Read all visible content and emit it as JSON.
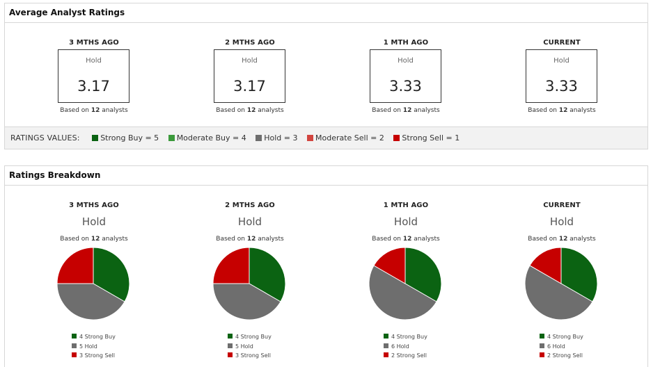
{
  "colors": {
    "strong_buy": "#0b6312",
    "moderate_buy": "#3b9a3b",
    "hold": "#6e6e6e",
    "moderate_sell": "#d2453f",
    "strong_sell": "#c60000",
    "border": "#d7d7d7"
  },
  "avg_panel": {
    "title": "Average Analyst Ratings",
    "columns": [
      {
        "label": "3 MTHS AGO",
        "rating": "Hold",
        "value": "3.17",
        "based_prefix": "Based on ",
        "count": "12",
        "based_suffix": " analysts"
      },
      {
        "label": "2 MTHS AGO",
        "rating": "Hold",
        "value": "3.17",
        "based_prefix": "Based on ",
        "count": "12",
        "based_suffix": " analysts"
      },
      {
        "label": "1 MTH AGO",
        "rating": "Hold",
        "value": "3.33",
        "based_prefix": "Based on ",
        "count": "12",
        "based_suffix": " analysts"
      },
      {
        "label": "CURRENT",
        "rating": "Hold",
        "value": "3.33",
        "based_prefix": "Based on ",
        "count": "12",
        "based_suffix": " analysts"
      }
    ],
    "values_bar": {
      "heading": "RATINGS VALUES:",
      "items": [
        {
          "label": "Strong Buy = 5",
          "color_key": "strong_buy"
        },
        {
          "label": "Moderate Buy = 4",
          "color_key": "moderate_buy"
        },
        {
          "label": "Hold = 3",
          "color_key": "hold"
        },
        {
          "label": "Moderate Sell = 2",
          "color_key": "moderate_sell"
        },
        {
          "label": "Strong Sell = 1",
          "color_key": "strong_sell"
        }
      ]
    }
  },
  "breakdown_panel": {
    "title": "Ratings Breakdown",
    "columns": [
      {
        "label": "3 MTHS AGO",
        "rating": "Hold",
        "based_prefix": "Based on ",
        "count": "12",
        "based_suffix": " analysts",
        "slices": [
          {
            "value": 4,
            "color_key": "strong_buy",
            "legend": "4 Strong Buy"
          },
          {
            "value": 5,
            "color_key": "hold",
            "legend": "5 Hold"
          },
          {
            "value": 3,
            "color_key": "strong_sell",
            "legend": "3 Strong Sell"
          }
        ]
      },
      {
        "label": "2 MTHS AGO",
        "rating": "Hold",
        "based_prefix": "Based on ",
        "count": "12",
        "based_suffix": " analysts",
        "slices": [
          {
            "value": 4,
            "color_key": "strong_buy",
            "legend": "4 Strong Buy"
          },
          {
            "value": 5,
            "color_key": "hold",
            "legend": "5 Hold"
          },
          {
            "value": 3,
            "color_key": "strong_sell",
            "legend": "3 Strong Sell"
          }
        ]
      },
      {
        "label": "1 MTH AGO",
        "rating": "Hold",
        "based_prefix": "Based on ",
        "count": "12",
        "based_suffix": " analysts",
        "slices": [
          {
            "value": 4,
            "color_key": "strong_buy",
            "legend": "4 Strong Buy"
          },
          {
            "value": 6,
            "color_key": "hold",
            "legend": "6 Hold"
          },
          {
            "value": 2,
            "color_key": "strong_sell",
            "legend": "2 Strong Sell"
          }
        ]
      },
      {
        "label": "CURRENT",
        "rating": "Hold",
        "based_prefix": "Based on ",
        "count": "12",
        "based_suffix": " analysts",
        "slices": [
          {
            "value": 4,
            "color_key": "strong_buy",
            "legend": "4 Strong Buy"
          },
          {
            "value": 6,
            "color_key": "hold",
            "legend": "6 Hold"
          },
          {
            "value": 2,
            "color_key": "strong_sell",
            "legend": "2 Strong Sell"
          }
        ]
      }
    ]
  },
  "chart_data": [
    {
      "type": "pie",
      "title": "3 MTHS AGO",
      "labels": [
        "Strong Buy",
        "Hold",
        "Strong Sell"
      ],
      "values": [
        4,
        5,
        3
      ]
    },
    {
      "type": "pie",
      "title": "2 MTHS AGO",
      "labels": [
        "Strong Buy",
        "Hold",
        "Strong Sell"
      ],
      "values": [
        4,
        5,
        3
      ]
    },
    {
      "type": "pie",
      "title": "1 MTH AGO",
      "labels": [
        "Strong Buy",
        "Hold",
        "Strong Sell"
      ],
      "values": [
        4,
        6,
        2
      ]
    },
    {
      "type": "pie",
      "title": "CURRENT",
      "labels": [
        "Strong Buy",
        "Hold",
        "Strong Sell"
      ],
      "values": [
        4,
        6,
        2
      ]
    }
  ]
}
